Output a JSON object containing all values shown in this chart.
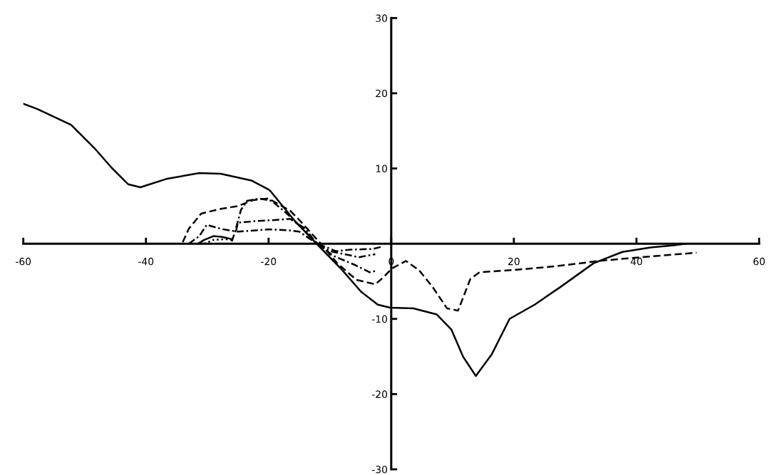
{
  "chart_data": {
    "type": "line",
    "xlim": [
      -60,
      60
    ],
    "ylim": [
      -30,
      30
    ],
    "xticks": [
      -60,
      -40,
      -20,
      0,
      20,
      40,
      60
    ],
    "yticks": [
      -30,
      -20,
      -10,
      10,
      20,
      30
    ],
    "grid": false,
    "legend": false,
    "marker": "none",
    "series": [
      {
        "color": "#000000",
        "line_style": "solid",
        "x": [
          -60,
          -57.7,
          -52.2,
          -48.4,
          -45.6,
          -42.9,
          -40.9,
          -36.7,
          -31.3,
          -27.8,
          -22.8,
          -20,
          -19.7,
          -15.8,
          -12.3,
          -8.0,
          -4.9,
          -2.2,
          -0.2,
          3.6,
          7.4,
          9.8,
          11.7,
          13.8,
          16.4,
          19.3,
          23.4,
          27.7,
          33.0,
          37.7,
          42.3,
          46.3,
          48
        ],
        "values": [
          18.6,
          17.9,
          15.8,
          12.7,
          10.1,
          7.9,
          7.5,
          8.6,
          9.4,
          9.3,
          8.4,
          7.2,
          7.0,
          3.1,
          0.1,
          -3.5,
          -6.4,
          -8.1,
          -8.5,
          -8.6,
          -9.4,
          -11.4,
          -15.0,
          -17.6,
          -14.7,
          -10.0,
          -8.1,
          -5.7,
          -2.6,
          -1.1,
          -0.5,
          -0.2,
          0
        ]
      },
      {
        "color": "#000000",
        "line_style": "dashed",
        "x": [
          -34,
          -33,
          -31,
          -28,
          -25,
          -22.5,
          -20,
          -16.5,
          -14.7,
          -11.5,
          -8.8,
          -5.7,
          -2.6,
          -1.3,
          0.1,
          2.4,
          4.5,
          6.7,
          9.1,
          10.9,
          12.9,
          14.4,
          20,
          26.9,
          33.8,
          39.3,
          49.8
        ],
        "values": [
          0.2,
          2,
          4,
          4.6,
          5.0,
          5.8,
          6.0,
          4.4,
          2.9,
          0,
          -2.6,
          -4.8,
          -5.4,
          -4.5,
          -3.3,
          -2.3,
          -3.5,
          -5.7,
          -8.6,
          -8.9,
          -4.7,
          -3.8,
          -3.5,
          -3.0,
          -2.3,
          -1.9,
          -1.2
        ]
      },
      {
        "color": "#000000",
        "line_style": "dashdot",
        "x": [
          -26,
          -25.5,
          -24.5,
          -23.5,
          -21.5,
          -19.5,
          -17,
          -14.5,
          -12,
          -9.5,
          -6,
          -3.5,
          -2.3
        ],
        "values": [
          0.3,
          1.5,
          4.5,
          5.7,
          6.0,
          5.7,
          4.0,
          2.0,
          0,
          -1.6,
          -2.8,
          -3.8,
          -3.6
        ]
      },
      {
        "color": "#000000",
        "line_style": "dashdot",
        "x": [
          -25.3,
          -25,
          -22,
          -18,
          -16.5,
          -14,
          -12.2,
          -10,
          -7,
          -5.3,
          -2.6
        ],
        "values": [
          1.7,
          2.8,
          3.0,
          3.2,
          3.3,
          2.0,
          0,
          -1.0,
          -1.5,
          -1.8,
          -1.4
        ]
      },
      {
        "color": "#000000",
        "line_style": "dashdot",
        "x": [
          -33,
          -31.3,
          -30.1,
          -27.4,
          -25.8,
          -25,
          -20,
          -17,
          -15,
          -13,
          -12,
          -9,
          -6.7,
          -3,
          -1.5
        ],
        "values": [
          0,
          1.0,
          2.5,
          1.9,
          1.7,
          1.6,
          1.9,
          1.8,
          1.6,
          0.5,
          0,
          -1.0,
          -0.8,
          -0.7,
          -0.4
        ]
      },
      {
        "color": "#000000",
        "line_style": "solid",
        "x": [
          -31.5,
          -30.5,
          -29,
          -27.5,
          -26
        ],
        "values": [
          0,
          0.5,
          1.0,
          0.9,
          0.6
        ]
      },
      {
        "color": "#000000",
        "line_style": "dotted",
        "x": [
          -30.5,
          -29,
          -27,
          -26
        ],
        "values": [
          0,
          0.5,
          0.6,
          0.5
        ]
      }
    ]
  }
}
